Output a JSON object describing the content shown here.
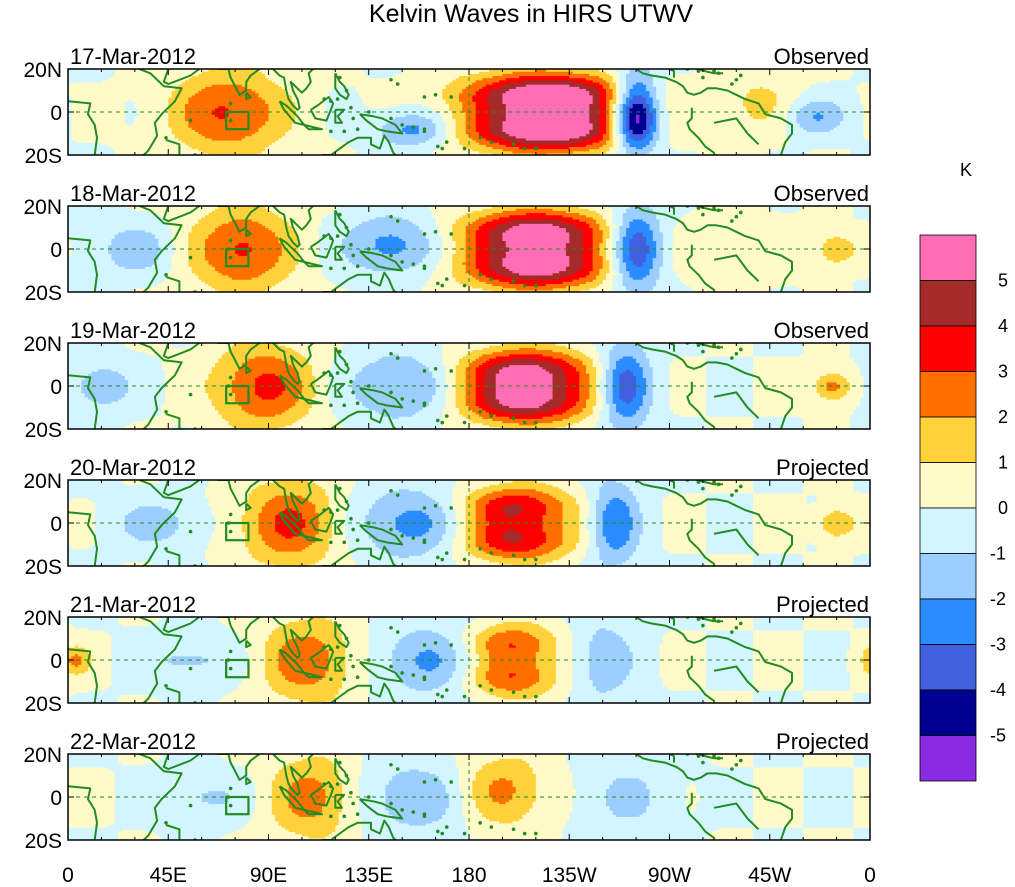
{
  "chart_data": {
    "type": "heatmap",
    "title": "Kelvin Waves in HIRS UTWV",
    "units": "K",
    "lat_range": [
      -20,
      20
    ],
    "lon_range": [
      0,
      360
    ],
    "x_ticks": [
      {
        "lon": 0,
        "label": "0"
      },
      {
        "lon": 45,
        "label": "45E"
      },
      {
        "lon": 90,
        "label": "90E"
      },
      {
        "lon": 135,
        "label": "135E"
      },
      {
        "lon": 180,
        "label": "180"
      },
      {
        "lon": 225,
        "label": "135W"
      },
      {
        "lon": 270,
        "label": "90W"
      },
      {
        "lon": 315,
        "label": "45W"
      },
      {
        "lon": 360,
        "label": "0"
      }
    ],
    "y_ticks": [
      {
        "lat": 20,
        "label": "20N"
      },
      {
        "lat": 0,
        "label": "0"
      },
      {
        "lat": -20,
        "label": "20S"
      }
    ],
    "colorbar": {
      "levels": [
        5,
        4,
        3,
        2,
        1,
        0,
        -1,
        -2,
        -3,
        -4,
        -5
      ],
      "level_labels": [
        "5",
        "4",
        "3",
        "2",
        "1",
        "0",
        "-1",
        "-2",
        "-3",
        "-4",
        "-5"
      ],
      "colors": [
        "#ff6eb4",
        "#a52a2a",
        "#ff0000",
        "#ff7000",
        "#ffd23c",
        "#fffac8",
        "#d2f5ff",
        "#9ccfff",
        "#2a8cff",
        "#4060e0",
        "#000090",
        "#8a2be2"
      ]
    },
    "box_marker": {
      "lon": 76,
      "lat": -4,
      "size_deg": 10
    },
    "panels": [
      {
        "date": "17-Mar-2012",
        "status": "Observed",
        "blobs": [
          {
            "lon": 215,
            "lat": 9,
            "v": 5.6,
            "sx": 25,
            "sy": 7
          },
          {
            "lon": 215,
            "lat": -9,
            "v": 5.6,
            "sx": 25,
            "sy": 7
          },
          {
            "lon": 215,
            "lat": 0,
            "v": 1.5,
            "sx": 25,
            "sy": 8
          },
          {
            "lon": 72,
            "lat": 0,
            "v": 3.2,
            "sx": 18,
            "sy": 14
          },
          {
            "lon": 255,
            "lat": 4,
            "v": -4.5,
            "sx": 7,
            "sy": 12
          },
          {
            "lon": 255,
            "lat": -8,
            "v": -3.5,
            "sx": 7,
            "sy": 8
          },
          {
            "lon": 155,
            "lat": -8,
            "v": -2.5,
            "sx": 12,
            "sy": 6
          },
          {
            "lon": 335,
            "lat": -2,
            "v": -2,
            "sx": 10,
            "sy": 6
          },
          {
            "lon": 310,
            "lat": 4,
            "v": 1.3,
            "sx": 12,
            "sy": 10
          }
        ]
      },
      {
        "date": "18-Mar-2012",
        "status": "Observed",
        "blobs": [
          {
            "lon": 210,
            "lat": 9,
            "v": 5.0,
            "sx": 22,
            "sy": 7
          },
          {
            "lon": 210,
            "lat": -9,
            "v": 5.0,
            "sx": 22,
            "sy": 7
          },
          {
            "lon": 210,
            "lat": 0,
            "v": 1.5,
            "sx": 22,
            "sy": 8
          },
          {
            "lon": 78,
            "lat": 0,
            "v": 3.3,
            "sx": 16,
            "sy": 14
          },
          {
            "lon": 255,
            "lat": 0,
            "v": -4.2,
            "sx": 8,
            "sy": 14
          },
          {
            "lon": 145,
            "lat": 2,
            "v": -2.5,
            "sx": 15,
            "sy": 10
          },
          {
            "lon": 30,
            "lat": 0,
            "v": -1.8,
            "sx": 12,
            "sy": 8
          },
          {
            "lon": 345,
            "lat": 0,
            "v": 2.2,
            "sx": 6,
            "sy": 5
          },
          {
            "lon": 300,
            "lat": 0,
            "v": 1.0,
            "sx": 15,
            "sy": 10
          }
        ]
      },
      {
        "date": "19-Mar-2012",
        "status": "Observed",
        "blobs": [
          {
            "lon": 205,
            "lat": 8,
            "v": 4.6,
            "sx": 20,
            "sy": 7
          },
          {
            "lon": 205,
            "lat": -8,
            "v": 4.6,
            "sx": 20,
            "sy": 7
          },
          {
            "lon": 205,
            "lat": 0,
            "v": 1.3,
            "sx": 20,
            "sy": 8
          },
          {
            "lon": 88,
            "lat": 0,
            "v": 3.3,
            "sx": 16,
            "sy": 14
          },
          {
            "lon": 250,
            "lat": 0,
            "v": -3.8,
            "sx": 8,
            "sy": 14
          },
          {
            "lon": 150,
            "lat": 0,
            "v": -2.2,
            "sx": 18,
            "sy": 12
          },
          {
            "lon": 15,
            "lat": 0,
            "v": -1.8,
            "sx": 10,
            "sy": 8
          },
          {
            "lon": 343,
            "lat": 0,
            "v": 2.5,
            "sx": 6,
            "sy": 5
          }
        ]
      },
      {
        "date": "20-Mar-2012",
        "status": "Projected",
        "blobs": [
          {
            "lon": 200,
            "lat": 8,
            "v": 4.0,
            "sx": 18,
            "sy": 7
          },
          {
            "lon": 200,
            "lat": -8,
            "v": 4.0,
            "sx": 18,
            "sy": 7
          },
          {
            "lon": 100,
            "lat": 0,
            "v": 3.2,
            "sx": 16,
            "sy": 14
          },
          {
            "lon": 245,
            "lat": 0,
            "v": -3.0,
            "sx": 8,
            "sy": 14
          },
          {
            "lon": 155,
            "lat": 0,
            "v": -2.5,
            "sx": 20,
            "sy": 12
          },
          {
            "lon": 40,
            "lat": 0,
            "v": -1.5,
            "sx": 15,
            "sy": 8
          },
          {
            "lon": 345,
            "lat": 0,
            "v": 2.2,
            "sx": 6,
            "sy": 5
          }
        ]
      },
      {
        "date": "21-Mar-2012",
        "status": "Projected",
        "blobs": [
          {
            "lon": 198,
            "lat": 8,
            "v": 3.2,
            "sx": 15,
            "sy": 7
          },
          {
            "lon": 198,
            "lat": -8,
            "v": 3.2,
            "sx": 15,
            "sy": 7
          },
          {
            "lon": 108,
            "lat": 0,
            "v": 2.8,
            "sx": 15,
            "sy": 14
          },
          {
            "lon": 165,
            "lat": 0,
            "v": -2.2,
            "sx": 20,
            "sy": 12
          },
          {
            "lon": 240,
            "lat": 0,
            "v": -1.8,
            "sx": 10,
            "sy": 14
          },
          {
            "lon": 55,
            "lat": 0,
            "v": -1.3,
            "sx": 15,
            "sy": 8
          },
          {
            "lon": 3,
            "lat": 0,
            "v": 2.2,
            "sx": 5,
            "sy": 5
          }
        ]
      },
      {
        "date": "22-Mar-2012",
        "status": "Projected",
        "blobs": [
          {
            "lon": 195,
            "lat": 3,
            "v": 2.4,
            "sx": 14,
            "sy": 12
          },
          {
            "lon": 110,
            "lat": 0,
            "v": 2.6,
            "sx": 14,
            "sy": 14
          },
          {
            "lon": 155,
            "lat": 0,
            "v": -1.8,
            "sx": 20,
            "sy": 12
          },
          {
            "lon": 60,
            "lat": 0,
            "v": -1.2,
            "sx": 15,
            "sy": 8
          },
          {
            "lon": 250,
            "lat": 0,
            "v": -1.2,
            "sx": 15,
            "sy": 12
          }
        ]
      }
    ]
  }
}
